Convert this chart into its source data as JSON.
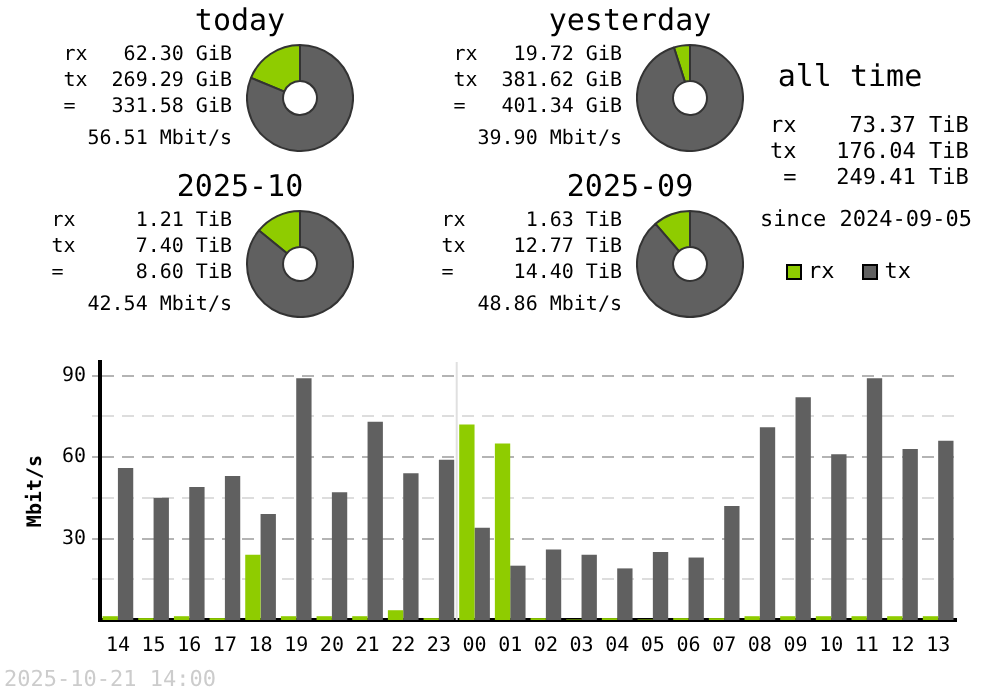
{
  "chart_data": [
    {
      "type": "donut",
      "title": "today",
      "categories": [
        null,
        null
      ],
      "values": [
        18.8,
        81.2
      ],
      "colors": [
        "#8fcc00",
        "#606060"
      ],
      "annotations": [
        "rx   62.30 GiB",
        "tx  269.29 GiB",
        "=   331.58 GiB",
        "56.51 Mbit/s"
      ]
    },
    {
      "type": "donut",
      "title": "yesterday",
      "categories": [
        null,
        null
      ],
      "values": [
        4.9,
        95.1
      ],
      "colors": [
        "#8fcc00",
        "#606060"
      ],
      "annotations": [
        "rx   19.72 GiB",
        "tx  381.62 GiB",
        "=   401.34 GiB",
        "39.90 Mbit/s"
      ]
    },
    {
      "type": "other",
      "title": "all time",
      "annotations": [
        "rx    73.37 TiB",
        "tx   176.04 TiB",
        " =   249.41 TiB",
        "since 2024-09-05"
      ]
    },
    {
      "type": "donut",
      "title": "2025-10",
      "categories": [
        null,
        null
      ],
      "values": [
        14.1,
        85.9
      ],
      "colors": [
        "#8fcc00",
        "#606060"
      ],
      "annotations": [
        "rx     1.21 TiB",
        "tx     7.40 TiB",
        "=      8.60 TiB",
        "42.54 Mbit/s"
      ]
    },
    {
      "type": "donut",
      "title": "2025-09",
      "categories": [
        null,
        null
      ],
      "values": [
        11.3,
        88.7
      ],
      "colors": [
        "#8fcc00",
        "#606060"
      ],
      "annotations": [
        "rx     1.63 TiB",
        "tx    12.77 TiB",
        "=     14.40 TiB",
        "48.86 Mbit/s"
      ]
    },
    {
      "type": "bar",
      "ylabel": "Mbit/s",
      "categories": [
        "14",
        "15",
        "16",
        "17",
        "18",
        "19",
        "20",
        "21",
        "22",
        "23",
        "00",
        "01",
        "02",
        "03",
        "04",
        "05",
        "06",
        "07",
        "08",
        "09",
        "10",
        "11",
        "12",
        "13"
      ],
      "series": [
        {
          "name": "rx",
          "color": "#8fcc00",
          "values": [
            1.4,
            0.7,
            1.4,
            0.7,
            24,
            1.4,
            1.4,
            1.4,
            3.6,
            0.7,
            72,
            65,
            0.7,
            0.2,
            0.7,
            0.2,
            0.7,
            0.7,
            1.4,
            1.4,
            1.4,
            1.4,
            1.4,
            1.4
          ]
        },
        {
          "name": "tx",
          "color": "#606060",
          "values": [
            56,
            45,
            49,
            53,
            39,
            89,
            47,
            73,
            54,
            59,
            34,
            20,
            26,
            24,
            19,
            25,
            23,
            42,
            71,
            82,
            61,
            89,
            63,
            66
          ]
        }
      ],
      "ylim": [
        0,
        95
      ],
      "yticks": [
        {
          "value": 15,
          "label": null
        },
        30,
        {
          "value": 45,
          "label": null
        },
        60,
        {
          "value": 75,
          "label": null
        },
        90
      ],
      "grid": "y",
      "legend": "top right",
      "ref_lines": [
        {
          "axis": "x",
          "value": "00",
          "color": "#e0e0e0"
        }
      ],
      "annotations": [
        "2025-10-21 14:00"
      ]
    }
  ]
}
